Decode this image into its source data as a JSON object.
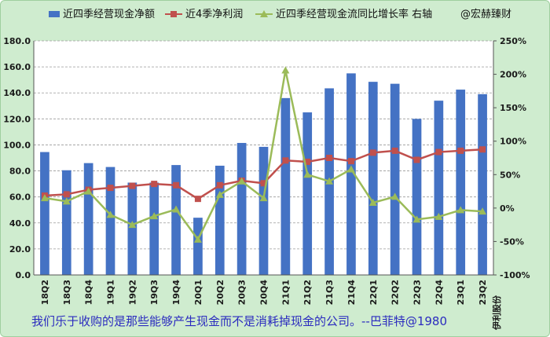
{
  "chart_data": {
    "type": "bar",
    "categories": [
      "18Q2",
      "18Q3",
      "18Q4",
      "19Q1",
      "19Q2",
      "19Q3",
      "19Q4",
      "20Q1",
      "20Q2",
      "20Q3",
      "20Q4",
      "21Q1",
      "21Q2",
      "21Q3",
      "21Q4",
      "22Q1",
      "22Q2",
      "22Q3",
      "22Q4",
      "23Q1",
      "23Q2"
    ],
    "series": [
      {
        "name": "近四季经营现金净额",
        "type": "bar",
        "axis": "left",
        "values": [
          94.5,
          80.5,
          86,
          83,
          71,
          71,
          84.5,
          44,
          84,
          101.5,
          98.5,
          136,
          125,
          143.5,
          155,
          148.5,
          147,
          120,
          134,
          142.5,
          139
        ]
      },
      {
        "name": "近4季净利润",
        "type": "line",
        "axis": "left",
        "values": [
          61,
          62,
          65.5,
          67,
          68.5,
          70,
          69,
          58.5,
          69,
          72.5,
          70.5,
          88,
          87,
          90,
          87.5,
          94,
          95.5,
          88.5,
          94.5,
          95.5,
          96.5
        ]
      },
      {
        "name": "近四季经营现金流同比增长率 右轴",
        "type": "line",
        "axis": "right",
        "values": [
          15,
          10,
          25,
          -10,
          -25,
          -12,
          -2,
          -47,
          20,
          40,
          15,
          206,
          50,
          40,
          58,
          8,
          17,
          -17,
          -13,
          -3,
          -5
        ]
      }
    ],
    "ylim": [
      0,
      180
    ],
    "yticks": [
      "0.0",
      "20.0",
      "40.0",
      "60.0",
      "80.0",
      "100.0",
      "120.0",
      "140.0",
      "160.0",
      "180.0"
    ],
    "y2lim": [
      -100,
      250
    ],
    "y2ticks": [
      "-100%",
      "-50%",
      "0%",
      "50%",
      "100%",
      "150%",
      "200%",
      "250%"
    ],
    "legend_extra": "@宏赫臻财",
    "grid": true,
    "legend": "top",
    "colors": {
      "bar": "#4472c4",
      "profit": "#c0504d",
      "growth": "#9bbb59",
      "background": "#cfeccf",
      "grid": "#9a9a9a",
      "caption": "#2b2bbf"
    }
  },
  "annotations": {
    "side_label": "伊利股份",
    "caption": "我们乐于收购的是那些能够产生现金而不是消耗掉现金的公司。--巴菲特@1980"
  }
}
